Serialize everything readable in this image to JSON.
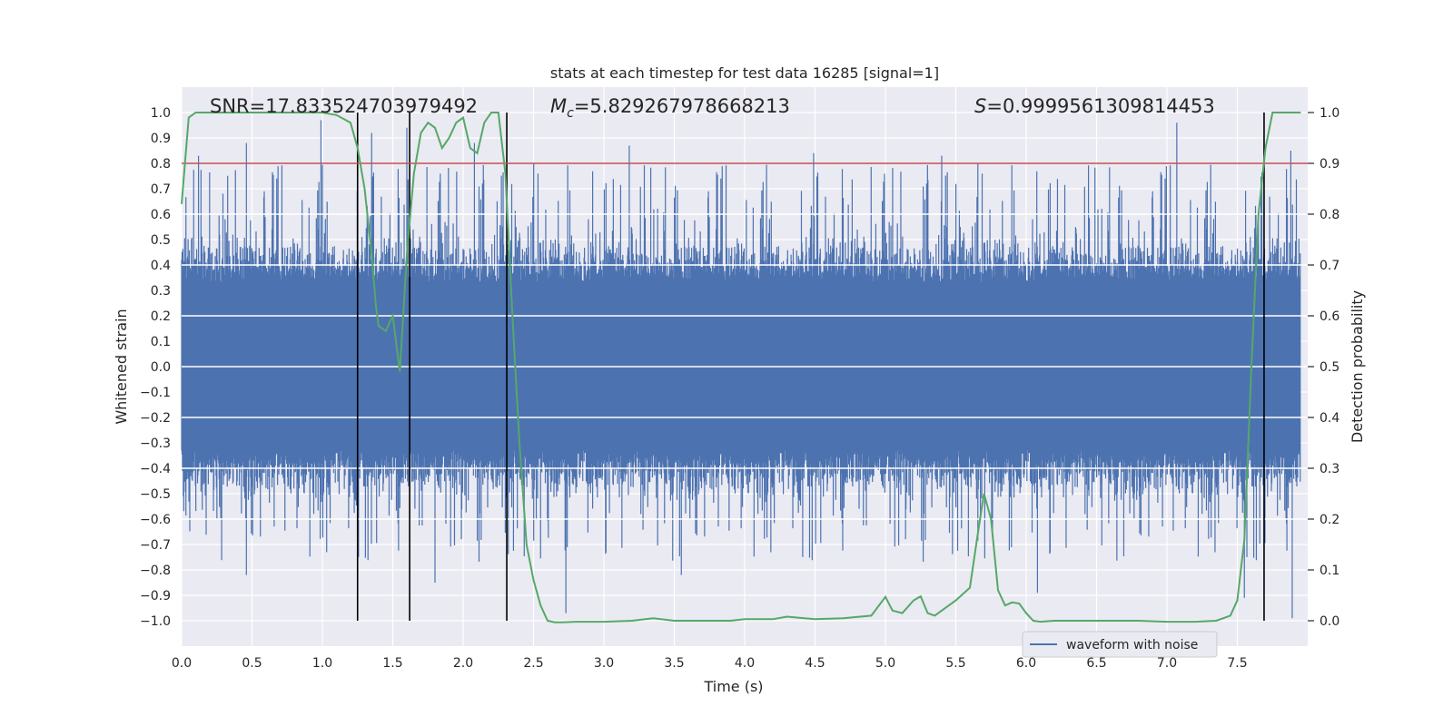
{
  "chart_data": {
    "type": "line",
    "title": "stats at each timestep for test data 16285 [signal=1]",
    "xlabel": "Time (s)",
    "ylabel": "Whitened strain",
    "y2label": "Detection probability",
    "xlim": [
      0.0,
      8.0
    ],
    "ylim": [
      -1.1,
      1.1
    ],
    "y2lim": [
      -0.05,
      1.05
    ],
    "xticks": [
      "0.0",
      "0.5",
      "1.0",
      "1.5",
      "2.0",
      "2.5",
      "3.0",
      "3.5",
      "4.0",
      "4.5",
      "5.0",
      "5.5",
      "6.0",
      "6.5",
      "7.0",
      "7.5"
    ],
    "yticks": [
      "1.0",
      "0.9",
      "0.8",
      "0.7",
      "0.6",
      "0.5",
      "0.4",
      "0.3",
      "0.2",
      "0.1",
      "0.0",
      "-0.1",
      "-0.2",
      "-0.3",
      "-0.4",
      "-0.5",
      "-0.6",
      "-0.7",
      "-0.8",
      "-0.9",
      "-1.0"
    ],
    "y2ticks": [
      "1.0",
      "0.9",
      "0.8",
      "0.7",
      "0.6",
      "0.5",
      "0.4",
      "0.3",
      "0.2",
      "0.1",
      "0.0"
    ],
    "annotations": {
      "snr": "SNR=17.833524703979492",
      "mc_symbol": "M",
      "mc_sub": "c",
      "mc_value": "=5.829267978668213",
      "s_symbol": "S",
      "s_value": "=0.9999561309814453"
    },
    "legend": {
      "label": "waveform with noise",
      "position": "lower right"
    },
    "threshold": {
      "value": 0.9,
      "axis": "right",
      "color": "#c44e52"
    },
    "vertical_markers": [
      1.25,
      1.62,
      2.31,
      7.69
    ],
    "waveform": {
      "name": "waveform with noise",
      "color": "#4c72b0",
      "description_range": [
        -1.0,
        1.0
      ],
      "peaks": [
        {
          "x": 0.12,
          "y": 0.83
        },
        {
          "x": 0.46,
          "y": 0.88
        },
        {
          "x": 0.99,
          "y": 0.97
        },
        {
          "x": 1.35,
          "y": 0.92
        },
        {
          "x": 1.6,
          "y": 0.94
        },
        {
          "x": 2.08,
          "y": 0.88
        },
        {
          "x": 3.18,
          "y": 0.87
        },
        {
          "x": 4.49,
          "y": 0.84
        },
        {
          "x": 5.4,
          "y": 0.83
        },
        {
          "x": 7.07,
          "y": 0.96
        },
        {
          "x": 7.88,
          "y": 0.85
        },
        {
          "x": 0.46,
          "y": -0.82
        },
        {
          "x": 1.8,
          "y": -0.85
        },
        {
          "x": 2.73,
          "y": -0.97
        },
        {
          "x": 3.55,
          "y": -0.82
        },
        {
          "x": 6.08,
          "y": -0.89
        },
        {
          "x": 7.55,
          "y": -0.91
        },
        {
          "x": 7.89,
          "y": -0.99
        }
      ]
    },
    "detection_probability": {
      "color": "#55a868",
      "x": [
        0.0,
        0.05,
        0.1,
        0.15,
        0.2,
        0.4,
        0.6,
        0.8,
        1.0,
        1.1,
        1.2,
        1.25,
        1.3,
        1.35,
        1.38,
        1.4,
        1.45,
        1.5,
        1.55,
        1.6,
        1.65,
        1.7,
        1.75,
        1.8,
        1.85,
        1.9,
        1.95,
        2.0,
        2.05,
        2.1,
        2.15,
        2.2,
        2.25,
        2.3,
        2.35,
        2.4,
        2.45,
        2.5,
        2.55,
        2.6,
        2.65,
        2.7,
        2.8,
        3.0,
        3.2,
        3.35,
        3.5,
        3.7,
        3.9,
        4.0,
        4.2,
        4.3,
        4.5,
        4.7,
        4.9,
        5.0,
        5.05,
        5.12,
        5.2,
        5.25,
        5.3,
        5.35,
        5.4,
        5.5,
        5.6,
        5.65,
        5.7,
        5.75,
        5.8,
        5.85,
        5.9,
        5.95,
        6.0,
        6.05,
        6.1,
        6.2,
        6.5,
        6.8,
        7.0,
        7.2,
        7.35,
        7.45,
        7.5,
        7.55,
        7.6,
        7.65,
        7.7,
        7.75,
        7.8,
        7.85,
        7.9,
        7.95
      ],
      "y": [
        0.82,
        0.99,
        1.0,
        1.0,
        1.0,
        1.0,
        1.0,
        1.0,
        1.0,
        0.995,
        0.98,
        0.93,
        0.85,
        0.72,
        0.62,
        0.58,
        0.57,
        0.6,
        0.49,
        0.72,
        0.88,
        0.96,
        0.98,
        0.97,
        0.93,
        0.95,
        0.98,
        0.99,
        0.93,
        0.92,
        0.98,
        1.0,
        1.0,
        0.88,
        0.6,
        0.35,
        0.15,
        0.08,
        0.03,
        0.0,
        -0.003,
        -0.003,
        -0.002,
        -0.002,
        0.0,
        0.005,
        0.0,
        0.0,
        0.0,
        0.003,
        0.003,
        0.008,
        0.003,
        0.005,
        0.01,
        0.047,
        0.02,
        0.015,
        0.04,
        0.048,
        0.015,
        0.01,
        0.02,
        0.04,
        0.065,
        0.16,
        0.25,
        0.2,
        0.06,
        0.03,
        0.036,
        0.034,
        0.015,
        0.0,
        -0.002,
        0.0,
        0.0,
        0.0,
        -0.002,
        -0.002,
        0.0,
        0.01,
        0.04,
        0.16,
        0.5,
        0.8,
        0.93,
        1.0,
        1.0,
        1.0,
        1.0,
        1.0
      ]
    }
  }
}
